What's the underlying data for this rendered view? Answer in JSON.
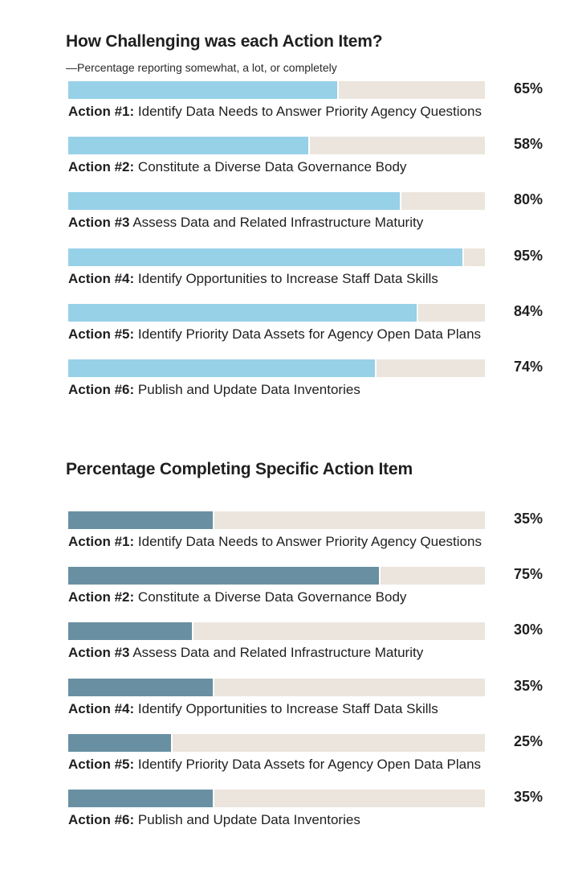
{
  "chart_data": [
    {
      "type": "bar",
      "orientation": "horizontal",
      "title": "How Challenging was each Action Item?",
      "subtitle": "—Percentage reporting somewhat, a lot, or completely",
      "color": "#97d1e8",
      "track_color": "#ece5dd",
      "xlim": [
        0,
        100
      ],
      "categories": [
        {
          "action": "Action #1:",
          "text": "Identify Data Needs to Answer Priority Agency Questions"
        },
        {
          "action": "Action #2:",
          "text": "Constitute a Diverse Data Governance Body"
        },
        {
          "action": "Action #3",
          "text": "Assess Data and Related Infrastructure Maturity"
        },
        {
          "action": "Action #4:",
          "text": "Identify Opportunities to Increase Staff Data Skills"
        },
        {
          "action": "Action #5:",
          "text": "Identify Priority Data Assets for Agency Open Data Plans"
        },
        {
          "action": "Action #6:",
          "text": "Publish and Update Data Inventories"
        }
      ],
      "values": [
        65,
        58,
        80,
        95,
        84,
        74
      ],
      "value_labels": [
        "65%",
        "58%",
        "80%",
        "95%",
        "84%",
        "74%"
      ]
    },
    {
      "type": "bar",
      "orientation": "horizontal",
      "title": "Percentage Completing Specific Action Item",
      "color": "#6890a2",
      "track_color": "#ece5dd",
      "xlim": [
        0,
        100
      ],
      "categories": [
        {
          "action": "Action #1:",
          "text": "Identify Data Needs to Answer Priority Agency Questions"
        },
        {
          "action": "Action #2:",
          "text": "Constitute a Diverse Data Governance Body"
        },
        {
          "action": "Action #3",
          "text": "Assess Data and Related Infrastructure Maturity"
        },
        {
          "action": "Action #4:",
          "text": "Identify Opportunities to Increase Staff Data Skills"
        },
        {
          "action": "Action #5:",
          "text": "Identify Priority Data Assets for Agency Open Data Plans"
        },
        {
          "action": "Action #6:",
          "text": "Publish and Update Data Inventories"
        }
      ],
      "values": [
        35,
        75,
        30,
        35,
        25,
        35
      ],
      "value_labels": [
        "35%",
        "75%",
        "30%",
        "35%",
        "25%",
        "35%"
      ]
    }
  ]
}
